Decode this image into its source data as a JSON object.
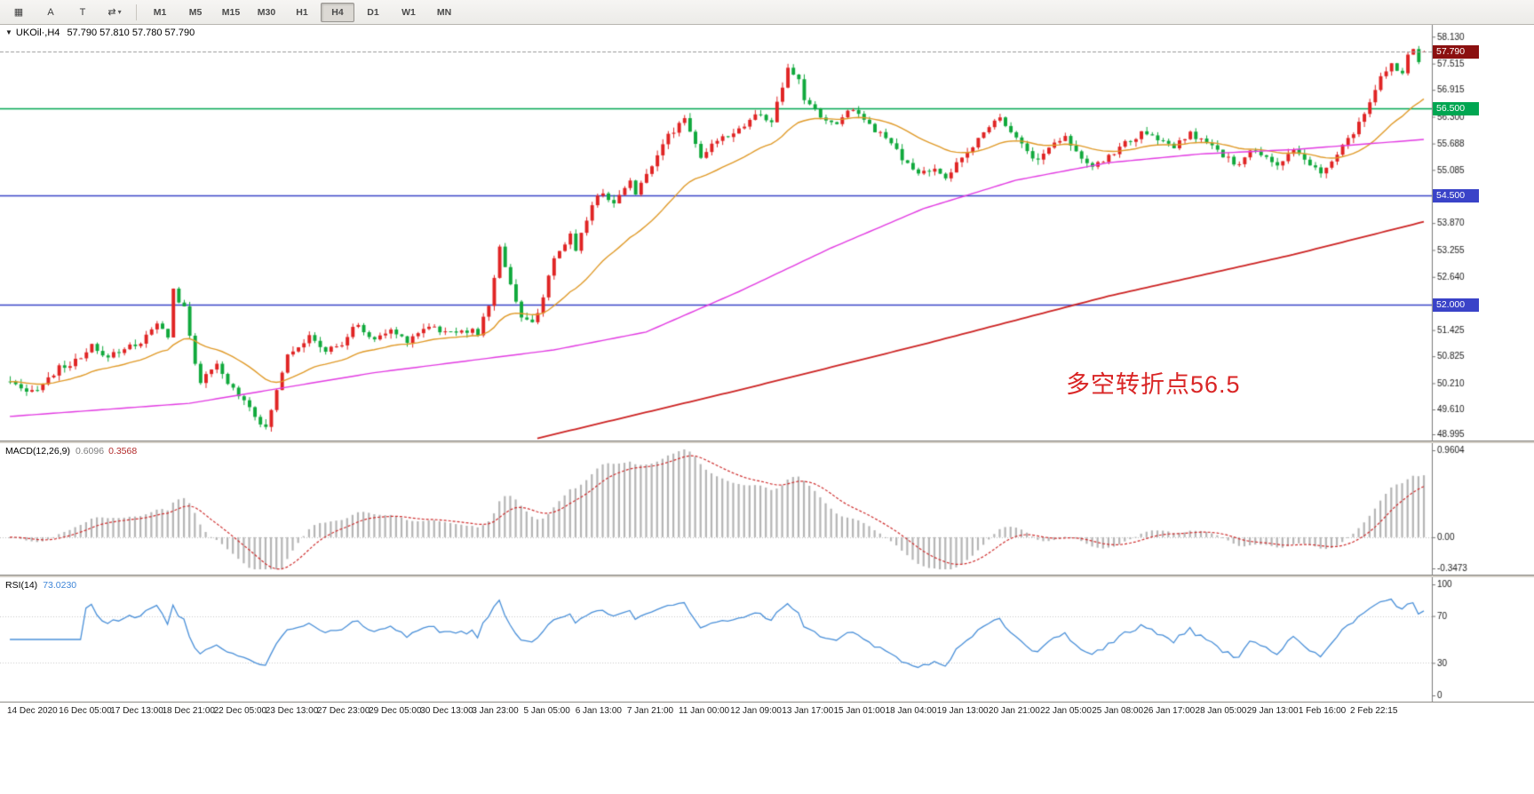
{
  "toolbar": {
    "buttons": [
      {
        "id": "objects",
        "glyph": "▦"
      },
      {
        "id": "text-a",
        "glyph": "A"
      },
      {
        "id": "text-t",
        "glyph": "T"
      },
      {
        "id": "cycle-symbol",
        "glyph": "⇄",
        "caret": "▾"
      }
    ],
    "timeframes": [
      {
        "label": "M1"
      },
      {
        "label": "M5"
      },
      {
        "label": "M15"
      },
      {
        "label": "M30"
      },
      {
        "label": "H1"
      },
      {
        "label": "H4",
        "active": true
      },
      {
        "label": "D1"
      },
      {
        "label": "W1"
      },
      {
        "label": "MN"
      }
    ]
  },
  "chart_header": {
    "collapse": "▼",
    "symbol": "UKOil·,H4",
    "ohlc": "57.790 57.810 57.780 57.790"
  },
  "chart_data": {
    "type": "candlestick",
    "symbol": "UKOil",
    "timeframe": "H4",
    "bars": 261,
    "ohlc_current": {
      "open": 57.79,
      "high": 57.81,
      "low": 57.78,
      "close": 57.79
    },
    "current_price": {
      "label": "57.790"
    },
    "colors": {
      "bull": "#e02424",
      "bear": "#10a93c",
      "bid_line": "#9a9a9a",
      "ma_fast": "#e09a28",
      "ma_mid": "#e23ae2",
      "ma_slow": "#cc2222",
      "current_tag": "#8b1010",
      "macd_hist": "#b5b5b5",
      "macd_signal": "#cf2e2e",
      "rsi_line": "#4a90d9"
    },
    "price_axis": {
      "max": 58.4,
      "min": 48.9,
      "ticks": [
        {
          "label": "58.130",
          "price": 58.13
        },
        {
          "label": "57.515",
          "price": 57.515
        },
        {
          "label": "56.915",
          "price": 56.915
        },
        {
          "label": "56.300",
          "price": 56.3
        },
        {
          "label": "55.688",
          "price": 55.688
        },
        {
          "label": "55.085",
          "price": 55.085
        },
        {
          "label": "53.870",
          "price": 53.87
        },
        {
          "label": "53.255",
          "price": 53.255
        },
        {
          "label": "52.640",
          "price": 52.64
        },
        {
          "label": "51.425",
          "price": 51.425
        },
        {
          "label": "50.825",
          "price": 50.825
        },
        {
          "label": "50.210",
          "price": 50.21
        },
        {
          "label": "49.610",
          "price": 49.61
        },
        {
          "label": "48.995",
          "price": 48.995
        }
      ]
    },
    "levels": [
      {
        "label": "56.500",
        "price": 56.5,
        "color": "#00a651"
      },
      {
        "label": "54.500",
        "price": 54.5,
        "color": "#3a43c8"
      },
      {
        "label": "52.000",
        "price": 52.0,
        "color": "#3a43c8"
      }
    ],
    "annotation": {
      "text": "多空转折点56.5",
      "color": "#d92525",
      "anchor_price": 50.62
    },
    "price_path": [
      [
        0,
        50.25
      ],
      [
        3,
        49.95
      ],
      [
        6,
        50.2
      ],
      [
        9,
        50.55
      ],
      [
        13,
        50.75
      ],
      [
        15,
        51.05
      ],
      [
        17,
        50.8
      ],
      [
        21,
        51.0
      ],
      [
        24,
        51.15
      ],
      [
        27,
        51.55
      ],
      [
        29,
        51.3
      ],
      [
        30,
        52.35
      ],
      [
        31,
        52.1
      ],
      [
        32,
        51.9
      ],
      [
        34,
        50.7
      ],
      [
        35,
        50.25
      ],
      [
        38,
        50.6
      ],
      [
        40,
        50.2
      ],
      [
        43,
        49.85
      ],
      [
        45,
        49.5
      ],
      [
        47,
        49.15
      ],
      [
        48,
        49.6
      ],
      [
        50,
        50.5
      ],
      [
        51,
        50.9
      ],
      [
        55,
        51.25
      ],
      [
        58,
        50.95
      ],
      [
        61,
        51.1
      ],
      [
        64,
        51.6
      ],
      [
        66,
        51.2
      ],
      [
        70,
        51.4
      ],
      [
        73,
        51.2
      ],
      [
        77,
        51.55
      ],
      [
        80,
        51.35
      ],
      [
        83,
        51.45
      ],
      [
        86,
        51.35
      ],
      [
        88,
        52.0
      ],
      [
        90,
        53.3
      ],
      [
        91,
        52.9
      ],
      [
        93,
        52.1
      ],
      [
        94,
        51.7
      ],
      [
        96,
        51.55
      ],
      [
        98,
        52.2
      ],
      [
        100,
        53.0
      ],
      [
        103,
        53.6
      ],
      [
        104,
        53.3
      ],
      [
        107,
        54.3
      ],
      [
        109,
        54.6
      ],
      [
        111,
        54.3
      ],
      [
        114,
        54.9
      ],
      [
        115,
        54.5
      ],
      [
        117,
        55.0
      ],
      [
        120,
        55.7
      ],
      [
        122,
        56.0
      ],
      [
        124,
        56.3
      ],
      [
        126,
        55.7
      ],
      [
        127,
        55.3
      ],
      [
        130,
        55.8
      ],
      [
        132,
        55.9
      ],
      [
        135,
        56.1
      ],
      [
        137,
        56.35
      ],
      [
        140,
        56.2
      ],
      [
        141,
        56.6
      ],
      [
        143,
        57.35
      ],
      [
        145,
        57.15
      ],
      [
        146,
        56.7
      ],
      [
        149,
        56.3
      ],
      [
        152,
        56.1
      ],
      [
        154,
        56.5
      ],
      [
        157,
        56.3
      ],
      [
        159,
        56.0
      ],
      [
        162,
        55.7
      ],
      [
        164,
        55.3
      ],
      [
        167,
        55.0
      ],
      [
        169,
        55.1
      ],
      [
        172,
        54.95
      ],
      [
        174,
        55.2
      ],
      [
        177,
        55.6
      ],
      [
        179,
        56.0
      ],
      [
        182,
        56.3
      ],
      [
        184,
        56.0
      ],
      [
        187,
        55.5
      ],
      [
        189,
        55.3
      ],
      [
        191,
        55.6
      ],
      [
        194,
        55.9
      ],
      [
        196,
        55.5
      ],
      [
        199,
        55.1
      ],
      [
        201,
        55.3
      ],
      [
        205,
        55.7
      ],
      [
        208,
        55.9
      ],
      [
        211,
        55.8
      ],
      [
        214,
        55.6
      ],
      [
        217,
        55.9
      ],
      [
        220,
        55.7
      ],
      [
        223,
        55.4
      ],
      [
        226,
        55.2
      ],
      [
        228,
        55.5
      ],
      [
        231,
        55.4
      ],
      [
        233,
        55.2
      ],
      [
        236,
        55.5
      ],
      [
        238,
        55.3
      ],
      [
        241,
        55.0
      ],
      [
        244,
        55.4
      ],
      [
        246,
        55.8
      ],
      [
        249,
        56.3
      ],
      [
        251,
        56.9
      ],
      [
        252,
        57.2
      ],
      [
        254,
        57.5
      ],
      [
        256,
        57.3
      ],
      [
        257,
        57.75
      ],
      [
        258,
        57.9
      ],
      [
        259,
        57.55
      ],
      [
        260,
        57.79
      ]
    ],
    "ma_fast": {
      "period": 24
    },
    "ma_mid": {
      "anchors": [
        [
          0,
          49.45
        ],
        [
          33,
          49.75
        ],
        [
          67,
          50.45
        ],
        [
          100,
          50.97
        ],
        [
          117,
          51.38
        ],
        [
          134,
          52.3
        ],
        [
          151,
          53.3
        ],
        [
          168,
          54.2
        ],
        [
          185,
          54.85
        ],
        [
          202,
          55.25
        ],
        [
          219,
          55.45
        ],
        [
          236,
          55.55
        ],
        [
          260,
          55.78
        ]
      ]
    },
    "ma_slow": {
      "anchors": [
        [
          97,
          48.95
        ],
        [
          134,
          50.05
        ],
        [
          168,
          51.1
        ],
        [
          202,
          52.2
        ],
        [
          236,
          53.15
        ],
        [
          260,
          53.9
        ]
      ]
    },
    "macd": {
      "label": "MACD(12,26,9)",
      "fast": 12,
      "slow": 26,
      "signal": 9,
      "values": {
        "main": "0.6096",
        "signal": "0.3568"
      },
      "axis": {
        "max": 0.9604,
        "min": -0.3473,
        "ticks": [
          {
            "label": "0.9604",
            "value": 0.9604
          },
          {
            "label": "0.00",
            "value": 0
          },
          {
            "label": "-0.3473",
            "value": -0.3473
          }
        ]
      }
    },
    "rsi": {
      "label": "RSI(14)",
      "period": 14,
      "value": "73.0230",
      "levels": [
        70,
        30
      ],
      "ticks": [
        {
          "label": "100",
          "value": 100
        },
        {
          "label": "70",
          "value": 70
        },
        {
          "label": "30",
          "value": 30
        },
        {
          "label": "0",
          "value": 0
        }
      ]
    },
    "time_labels": [
      "14 Dec 2020",
      "16 Dec 05:00",
      "17 Dec 13:00",
      "18 Dec 21:00",
      "22 Dec 05:00",
      "23 Dec 13:00",
      "27 Dec 23:00",
      "29 Dec 05:00",
      "30 Dec 13:00",
      "3 Jan 23:00",
      "5 Jan 05:00",
      "6 Jan 13:00",
      "7 Jan 21:00",
      "11 Jan 00:00",
      "12 Jan 09:00",
      "13 Jan 17:00",
      "15 Jan 01:00",
      "18 Jan 04:00",
      "19 Jan 13:00",
      "20 Jan 21:00",
      "22 Jan 05:00",
      "25 Jan 08:00",
      "26 Jan 17:00",
      "28 Jan 05:00",
      "29 Jan 13:00",
      "1 Feb 16:00",
      "2 Feb 22:15"
    ]
  }
}
